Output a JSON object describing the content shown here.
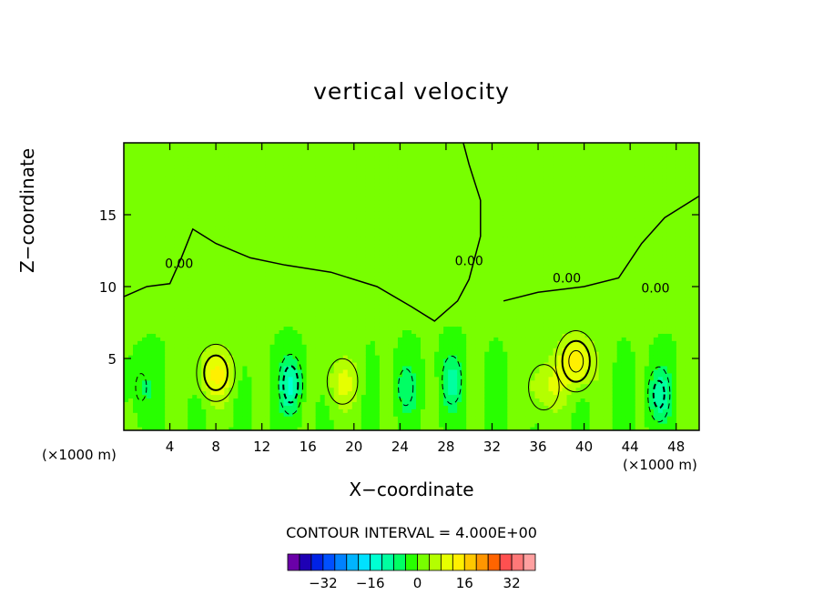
{
  "chart_data": {
    "type": "contour",
    "title": "vertical velocity",
    "xlabel": "X−coordinate",
    "ylabel": "Z−coordinate",
    "x_unit_label": "(×1000 m)",
    "xlim": [
      0,
      50
    ],
    "ylim": [
      0,
      20
    ],
    "x_ticks": [
      4,
      8,
      12,
      16,
      20,
      24,
      28,
      32,
      36,
      40,
      44,
      48
    ],
    "y_ticks": [
      5,
      10,
      15
    ],
    "contour_interval_text": "CONTOUR INTERVAL = 4.000E+00",
    "contour_interval": 4,
    "zero_contour_label": "0.00",
    "zero_label_positions": [
      {
        "x": 4.8,
        "z": 11.3
      },
      {
        "x": 30.0,
        "z": 11.5
      },
      {
        "x": 38.5,
        "z": 10.3
      },
      {
        "x": 46.2,
        "z": 9.6
      }
    ],
    "features": [
      {
        "kind": "updraft",
        "x": 8.0,
        "z": 4.0,
        "max": 12
      },
      {
        "kind": "updraft",
        "x": 19.0,
        "z": 3.4,
        "max": 8
      },
      {
        "kind": "updraft",
        "x": 39.3,
        "z": 4.8,
        "max": 14
      },
      {
        "kind": "updraft",
        "x": 36.5,
        "z": 3.0,
        "max": 8
      },
      {
        "kind": "downdraft",
        "x": 14.5,
        "z": 3.2,
        "min": -12
      },
      {
        "kind": "downdraft",
        "x": 24.5,
        "z": 3.0,
        "min": -6
      },
      {
        "kind": "downdraft",
        "x": 28.5,
        "z": 3.5,
        "min": -8
      },
      {
        "kind": "downdraft",
        "x": 46.5,
        "z": 2.5,
        "min": -10
      },
      {
        "kind": "downdraft",
        "x": 1.5,
        "z": 3.0,
        "min": -5
      }
    ],
    "colorbar": {
      "ticks": [
        -32,
        -16,
        0,
        16,
        32
      ],
      "tick_labels": [
        "−32",
        "−16",
        "0",
        "16",
        "32"
      ],
      "levels": [
        -40,
        -36,
        -32,
        -28,
        -24,
        -20,
        -16,
        -12,
        -8,
        -4,
        0,
        4,
        8,
        12,
        16,
        20,
        24,
        28,
        32,
        36
      ],
      "colors": [
        "#6a00a8",
        "#1e00b4",
        "#0022e6",
        "#0050ff",
        "#0082ff",
        "#00b4ff",
        "#00e1ff",
        "#00ffd2",
        "#00ffa0",
        "#00ff64",
        "#28ff00",
        "#78ff00",
        "#b4ff00",
        "#e6ff00",
        "#fff000",
        "#ffc800",
        "#ff9600",
        "#ff6400",
        "#ff5050",
        "#ff7878",
        "#ffa0a0"
      ]
    }
  }
}
